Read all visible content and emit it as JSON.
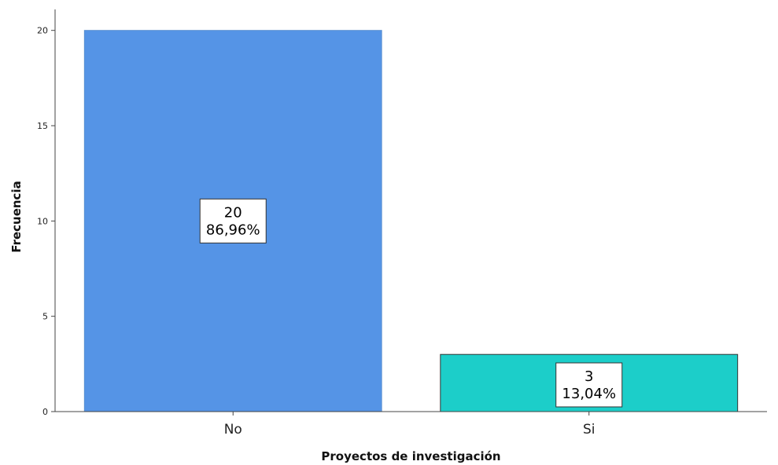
{
  "chart_data": {
    "type": "bar",
    "title": "",
    "xlabel": "Proyectos de investigación",
    "ylabel": "Frecuencia",
    "categories": [
      "No",
      "Si"
    ],
    "values": [
      20,
      3
    ],
    "data_labels": [
      {
        "count": "20",
        "percent": "86,96%"
      },
      {
        "count": "3",
        "percent": "13,04%"
      }
    ],
    "bar_colors": [
      "#5594e6",
      "#1ccec9"
    ],
    "y_ticks": [
      "0",
      "5",
      "10",
      "15",
      "20"
    ],
    "y_tick_values": [
      0,
      5,
      10,
      15,
      20
    ],
    "ylim": [
      0,
      21.1
    ],
    "grid": false,
    "legend": "none"
  }
}
